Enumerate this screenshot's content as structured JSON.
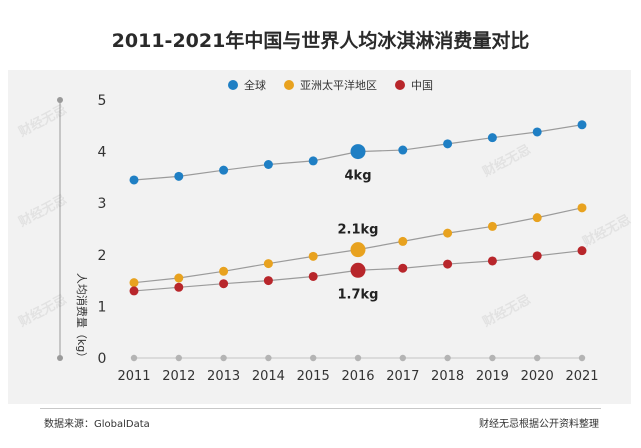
{
  "chart_data": {
    "type": "line",
    "title": "2011-2021年中国与世界人均冰淇淋消费量对比",
    "ylabel": "人均消费量（kg）",
    "xlabel": "",
    "x": [
      "2011",
      "2012",
      "2013",
      "2014",
      "2015",
      "2016",
      "2017",
      "2018",
      "2019",
      "2020",
      "2021"
    ],
    "y_ticks": [
      "0",
      "1",
      "2",
      "3",
      "4",
      "5"
    ],
    "ylim": [
      0,
      5
    ],
    "grid": false,
    "legend_position": "top",
    "series": [
      {
        "name": "全球",
        "color": "#1f7fc4",
        "values": [
          3.45,
          3.52,
          3.64,
          3.75,
          3.82,
          4.0,
          4.03,
          4.15,
          4.27,
          4.38,
          4.52
        ],
        "highlight_index": 5,
        "highlight_label": "4kg"
      },
      {
        "name": "亚洲太平洋地区",
        "color": "#e8a21f",
        "values": [
          1.46,
          1.55,
          1.68,
          1.83,
          1.97,
          2.1,
          2.26,
          2.42,
          2.55,
          2.72,
          2.91
        ],
        "highlight_index": 5,
        "highlight_label": "2.1kg"
      },
      {
        "name": "中国",
        "color": "#b8262b",
        "values": [
          1.3,
          1.37,
          1.44,
          1.5,
          1.58,
          1.7,
          1.74,
          1.82,
          1.88,
          1.98,
          2.08
        ],
        "highlight_index": 5,
        "highlight_label": "1.7kg"
      }
    ]
  },
  "footer": {
    "source": "数据来源：GlobalData",
    "credit": "财经无忌根据公开资料整理"
  },
  "watermark": {
    "text": "财经无忌"
  }
}
